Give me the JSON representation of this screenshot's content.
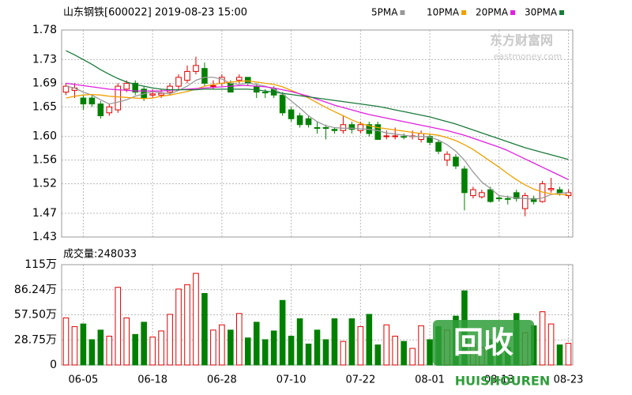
{
  "chart_data": [
    {
      "type": "candlestick",
      "title": "山东钢铁[600022] 2019-08-23 15:00",
      "categories": [
        null,
        null,
        "06-05",
        null,
        null,
        null,
        null,
        null,
        null,
        null,
        "06-18",
        null,
        null,
        null,
        null,
        null,
        null,
        null,
        "06-28",
        null,
        null,
        null,
        null,
        null,
        null,
        null,
        "07-10",
        null,
        null,
        null,
        null,
        null,
        null,
        null,
        "07-22",
        null,
        null,
        null,
        null,
        null,
        null,
        null,
        "08-01",
        null,
        null,
        null,
        null,
        null,
        null,
        null,
        "08-13",
        null,
        null,
        null,
        null,
        null,
        null,
        null,
        "08-23"
      ],
      "open": [
        1.675,
        1.678,
        1.665,
        1.665,
        1.655,
        1.64,
        1.645,
        1.68,
        1.69,
        1.68,
        1.67,
        1.67,
        1.675,
        1.685,
        1.695,
        1.71,
        1.715,
        1.685,
        1.69,
        1.69,
        1.695,
        1.7,
        1.685,
        1.675,
        1.68,
        1.67,
        1.645,
        1.635,
        1.63,
        1.615,
        1.615,
        1.612,
        1.61,
        1.62,
        1.61,
        1.62,
        1.62,
        1.6,
        1.6,
        1.6,
        1.6,
        1.595,
        1.6,
        1.59,
        1.56,
        1.565,
        1.545,
        1.5,
        1.498,
        1.51,
        1.496,
        1.495,
        1.505,
        1.478,
        1.495,
        1.49,
        1.51,
        1.51,
        1.5
      ],
      "high": [
        1.69,
        1.69,
        1.67,
        1.67,
        1.66,
        1.655,
        1.69,
        1.695,
        1.695,
        1.685,
        1.68,
        1.68,
        1.69,
        1.705,
        1.72,
        1.735,
        1.725,
        1.695,
        1.705,
        1.695,
        1.705,
        1.7,
        1.69,
        1.68,
        1.685,
        1.675,
        1.65,
        1.64,
        1.635,
        1.625,
        1.62,
        1.615,
        1.635,
        1.625,
        1.625,
        1.625,
        1.625,
        1.61,
        1.615,
        1.605,
        1.61,
        1.61,
        1.605,
        1.595,
        1.575,
        1.57,
        1.55,
        1.515,
        1.51,
        1.515,
        1.5,
        1.5,
        1.51,
        1.505,
        1.5,
        1.525,
        1.53,
        1.515,
        1.51
      ],
      "low": [
        1.67,
        1.665,
        1.645,
        1.65,
        1.63,
        1.635,
        1.64,
        1.675,
        1.67,
        1.66,
        1.665,
        1.665,
        1.67,
        1.68,
        1.69,
        1.705,
        1.685,
        1.68,
        1.685,
        1.675,
        1.69,
        1.685,
        1.665,
        1.665,
        1.665,
        1.635,
        1.625,
        1.615,
        1.615,
        1.605,
        1.595,
        1.605,
        1.605,
        1.605,
        1.605,
        1.6,
        1.595,
        1.595,
        1.595,
        1.595,
        1.595,
        1.59,
        1.585,
        1.57,
        1.55,
        1.545,
        1.475,
        1.495,
        1.495,
        1.488,
        1.49,
        1.485,
        1.49,
        1.465,
        1.485,
        1.488,
        1.505,
        1.5,
        1.495
      ],
      "close": [
        1.685,
        1.682,
        1.655,
        1.655,
        1.635,
        1.65,
        1.685,
        1.69,
        1.675,
        1.665,
        1.672,
        1.673,
        1.685,
        1.7,
        1.71,
        1.72,
        1.69,
        1.686,
        1.7,
        1.675,
        1.7,
        1.69,
        1.675,
        1.674,
        1.67,
        1.64,
        1.63,
        1.62,
        1.62,
        1.614,
        1.614,
        1.61,
        1.62,
        1.612,
        1.62,
        1.605,
        1.595,
        1.601,
        1.601,
        1.599,
        1.601,
        1.605,
        1.59,
        1.575,
        1.57,
        1.55,
        1.505,
        1.51,
        1.505,
        1.49,
        1.495,
        1.494,
        1.495,
        1.5,
        1.49,
        1.52,
        1.512,
        1.505,
        1.505
      ],
      "series": [
        {
          "name": "5PMA",
          "color": "#999999",
          "values": [
            1.685,
            1.682,
            1.675,
            1.67,
            1.662,
            1.655,
            1.658,
            1.662,
            1.668,
            1.672,
            1.676,
            1.674,
            1.672,
            1.678,
            1.685,
            1.695,
            1.7,
            1.7,
            1.697,
            1.69,
            1.688,
            1.69,
            1.688,
            1.685,
            1.68,
            1.672,
            1.66,
            1.648,
            1.635,
            1.625,
            1.618,
            1.615,
            1.614,
            1.614,
            1.613,
            1.612,
            1.61,
            1.606,
            1.604,
            1.602,
            1.6,
            1.6,
            1.599,
            1.594,
            1.586,
            1.575,
            1.56,
            1.54,
            1.523,
            1.512,
            1.5,
            1.498,
            1.496,
            1.495,
            1.494,
            1.496,
            1.502,
            1.504,
            1.505
          ]
        },
        {
          "name": "10PMA",
          "color": "#f0a000",
          "values": [
            1.665,
            1.668,
            1.67,
            1.671,
            1.67,
            1.668,
            1.667,
            1.666,
            1.665,
            1.664,
            1.665,
            1.668,
            1.67,
            1.673,
            1.676,
            1.68,
            1.685,
            1.688,
            1.69,
            1.692,
            1.693,
            1.694,
            1.692,
            1.69,
            1.688,
            1.684,
            1.678,
            1.672,
            1.665,
            1.657,
            1.649,
            1.642,
            1.635,
            1.628,
            1.622,
            1.618,
            1.615,
            1.613,
            1.611,
            1.609,
            1.607,
            1.605,
            1.604,
            1.602,
            1.598,
            1.593,
            1.586,
            1.578,
            1.568,
            1.558,
            1.548,
            1.537,
            1.527,
            1.518,
            1.511,
            1.506,
            1.503,
            1.502,
            1.501
          ]
        },
        {
          "name": "20PMA",
          "color": "#e020e0",
          "values": [
            1.69,
            1.688,
            1.686,
            1.684,
            1.682,
            1.68,
            1.679,
            1.678,
            1.677,
            1.677,
            1.677,
            1.677,
            1.678,
            1.679,
            1.68,
            1.681,
            1.682,
            1.683,
            1.684,
            1.685,
            1.686,
            1.686,
            1.685,
            1.684,
            1.682,
            1.679,
            1.676,
            1.672,
            1.668,
            1.663,
            1.658,
            1.653,
            1.649,
            1.645,
            1.641,
            1.637,
            1.634,
            1.631,
            1.628,
            1.625,
            1.622,
            1.619,
            1.616,
            1.613,
            1.61,
            1.606,
            1.602,
            1.597,
            1.592,
            1.587,
            1.582,
            1.576,
            1.569,
            1.562,
            1.555,
            1.548,
            1.541,
            1.534,
            1.527
          ]
        },
        {
          "name": "30PMA",
          "color": "#1a7a3a",
          "values": [
            1.745,
            1.738,
            1.73,
            1.722,
            1.713,
            1.705,
            1.698,
            1.692,
            1.688,
            1.685,
            1.682,
            1.68,
            1.679,
            1.679,
            1.679,
            1.679,
            1.68,
            1.68,
            1.68,
            1.68,
            1.68,
            1.68,
            1.679,
            1.677,
            1.675,
            1.673,
            1.671,
            1.669,
            1.667,
            1.665,
            1.663,
            1.661,
            1.659,
            1.657,
            1.655,
            1.653,
            1.651,
            1.648,
            1.645,
            1.642,
            1.639,
            1.636,
            1.633,
            1.629,
            1.625,
            1.621,
            1.616,
            1.611,
            1.606,
            1.601,
            1.596,
            1.591,
            1.586,
            1.581,
            1.577,
            1.573,
            1.569,
            1.565,
            1.561
          ]
        }
      ],
      "up_color": "#e00000",
      "down_color": "#008000",
      "ylim": [
        1.43,
        1.78
      ],
      "yticks": [
        1.43,
        1.47,
        1.52,
        1.56,
        {
          "value": 1.6,
          "label": "1.60"
        },
        1.65,
        1.69,
        1.73,
        1.78
      ],
      "grid": true,
      "annotations": [
        "东方财富网",
        "eastmoney.com"
      ]
    },
    {
      "type": "bar",
      "title": "成交量:248033",
      "values": [
        54,
        44,
        47,
        29,
        40,
        33,
        89,
        54,
        35,
        49,
        32,
        39,
        58,
        87,
        92,
        105,
        82,
        40,
        46,
        40,
        59,
        31,
        49,
        29,
        39,
        74,
        33,
        53,
        24,
        40,
        29,
        53,
        27,
        53,
        44,
        58,
        23,
        46,
        33,
        27,
        19,
        45,
        29,
        44,
        40,
        56,
        85,
        24,
        20,
        29,
        28,
        20,
        59,
        37,
        45,
        61,
        47,
        23,
        24.8
      ],
      "ylim": [
        0,
        115
      ],
      "yticks": [
        0,
        {
          "value": 28.75,
          "label": "28.75万"
        },
        {
          "value": 57.5,
          "label": "57.50万"
        },
        {
          "value": 86.24,
          "label": "86.24万"
        },
        {
          "value": 115,
          "label": "115万"
        }
      ],
      "grid": true,
      "annotations": [
        "回收",
        "HUISHOUREN"
      ]
    }
  ]
}
